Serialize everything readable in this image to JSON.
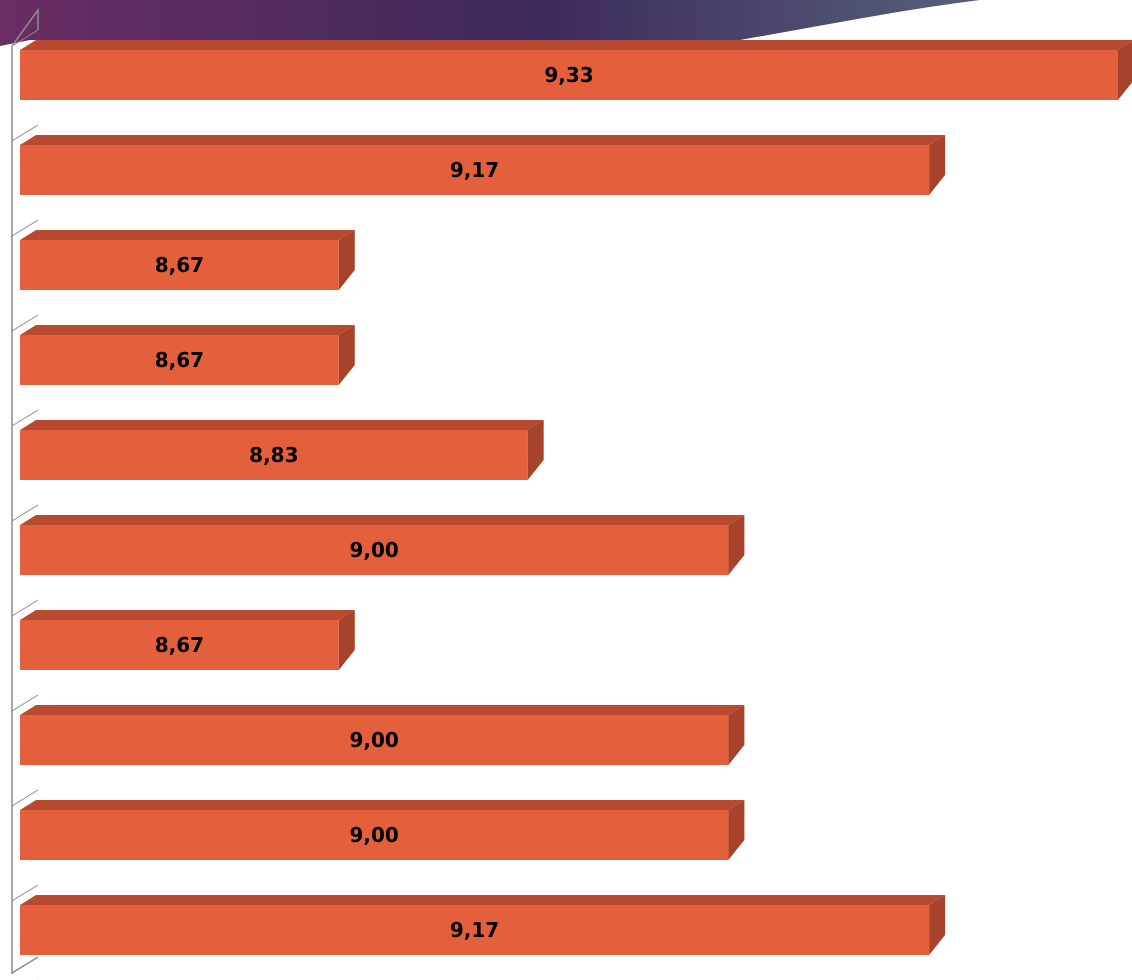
{
  "theme": {
    "header_gradient": [
      "#6a2c63",
      "#3d2a5c",
      "#56607a"
    ],
    "bar_front": "#e45f3c",
    "bar_top": "#b84a30",
    "bar_side": "#a8432b",
    "axis_color": "#8c8c8c"
  },
  "chart_data": {
    "type": "bar",
    "orientation": "horizontal",
    "style": "3d",
    "title": "",
    "xlabel": "",
    "ylabel": "",
    "grid": false,
    "legend": "none",
    "xlim": [
      8.4,
      9.33
    ],
    "values": [
      9.33,
      9.17,
      8.67,
      8.67,
      8.83,
      9.0,
      8.67,
      9.0,
      9.0,
      9.17
    ],
    "labels": [
      "9,33",
      "9,17",
      "8,67",
      "8,67",
      "8,83",
      "9,00",
      "8,67",
      "9,00",
      "9,00",
      "9,17"
    ]
  }
}
